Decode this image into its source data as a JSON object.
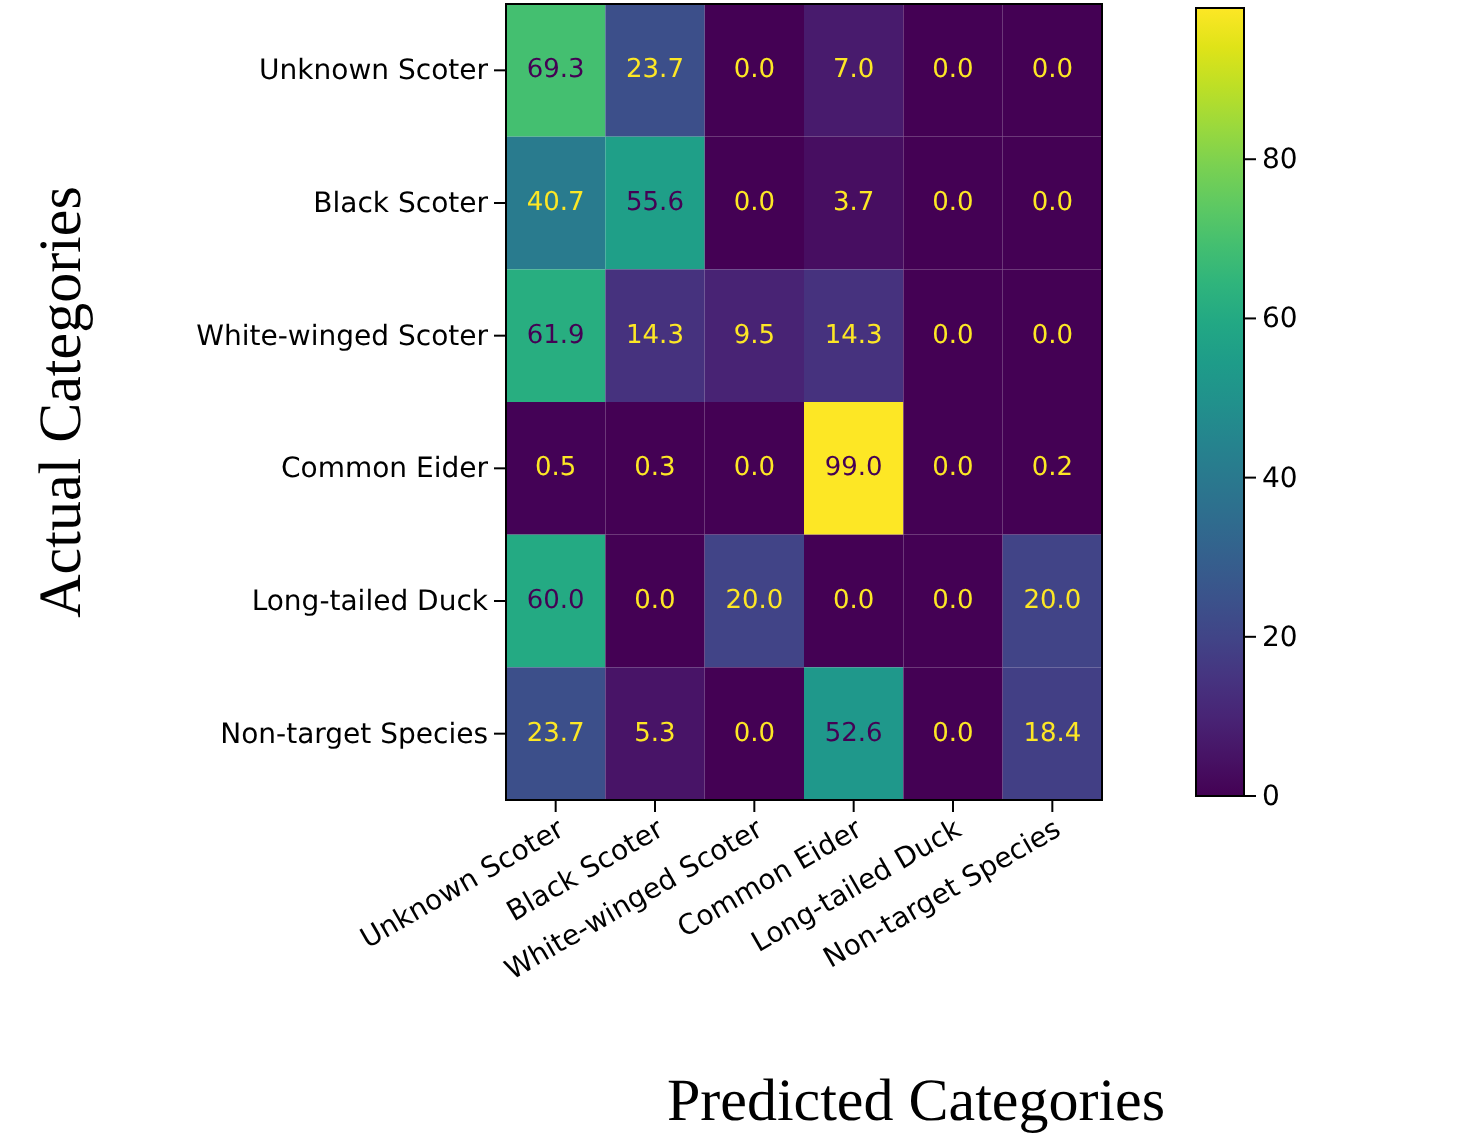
{
  "chart_data": {
    "type": "heatmap",
    "xlabel": "Predicted Categories",
    "ylabel": "Actual Categories",
    "categories": [
      "Unknown Scoter",
      "Black Scoter",
      "White-winged Scoter",
      "Common Eider",
      "Long-tailed Duck",
      "Non-target Species"
    ],
    "y_categories": [
      "Unknown Scoter",
      "Black Scoter",
      "White-winged Scoter",
      "Common Eider",
      "Long-tailed Duck",
      "Non-target Species"
    ],
    "cells": [
      [
        69.3,
        23.7,
        0.0,
        7.0,
        0.0,
        0.0
      ],
      [
        40.7,
        55.6,
        0.0,
        3.7,
        0.0,
        0.0
      ],
      [
        61.9,
        14.3,
        9.5,
        14.3,
        0.0,
        0.0
      ],
      [
        0.5,
        0.3,
        0.0,
        99.0,
        0.0,
        0.2
      ],
      [
        60.0,
        0.0,
        20.0,
        0.0,
        0.0,
        20.0
      ],
      [
        23.7,
        5.3,
        0.0,
        52.6,
        0.0,
        18.4
      ]
    ],
    "cell_labels": [
      [
        "69.3",
        "23.7",
        "0.0",
        "7.0",
        "0.0",
        "0.0"
      ],
      [
        "40.7",
        "55.6",
        "0.0",
        "3.7",
        "0.0",
        "0.0"
      ],
      [
        "61.9",
        "14.3",
        "9.5",
        "14.3",
        "0.0",
        "0.0"
      ],
      [
        "0.5",
        "0.3",
        "0.0",
        "99.0",
        "0.0",
        "0.2"
      ],
      [
        "60.0",
        "0.0",
        "20.0",
        "0.0",
        "0.0",
        "20.0"
      ],
      [
        "23.7",
        "5.3",
        "0.0",
        "52.6",
        "0.0",
        "18.4"
      ]
    ],
    "clim": [
      0,
      99
    ],
    "cticks": [
      0,
      20,
      40,
      60,
      80
    ],
    "data_labels": true
  }
}
